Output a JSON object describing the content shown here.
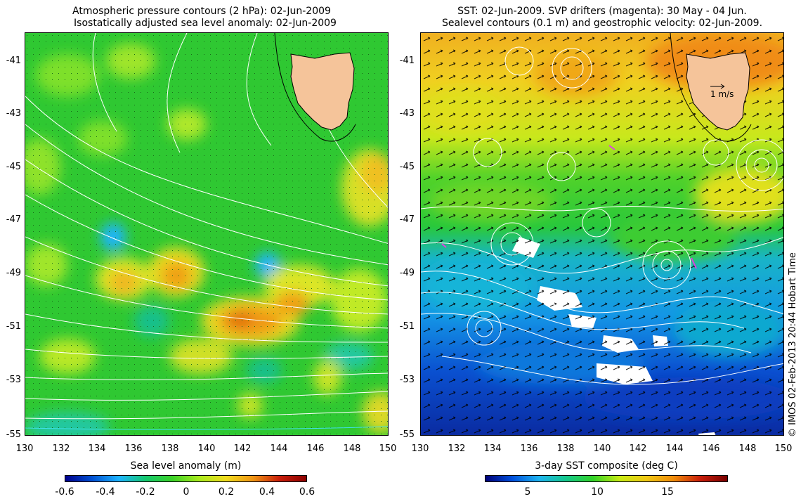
{
  "left": {
    "title_line1": "Atmospheric pressure contours (2 hPa): 02-Jun-2009",
    "title_line2": "Isostatically adjusted sea level anomaly: 02-Jun-2009",
    "colorbar_label": "Sea level anomaly (m)",
    "colorbar_ticks": [
      "-0.6",
      "-0.4",
      "-0.2",
      "0",
      "0.2",
      "0.4",
      "0.6"
    ]
  },
  "right": {
    "title_line1": "SST: 02-Jun-2009. SVP drifters (magenta): 30 May - 04 Jun.",
    "title_line2": "Sealevel contours (0.1 m) and geostrophic velocity: 02-Jun-2009.",
    "colorbar_label": "3-day SST composite (deg C)",
    "colorbar_ticks": [
      "5",
      "10",
      "15"
    ],
    "scale_label": "1 m/s"
  },
  "axes": {
    "y_ticks": [
      "-41",
      "-43",
      "-45",
      "-47",
      "-49",
      "-51",
      "-53",
      "-55"
    ],
    "x_ticks": [
      "130",
      "132",
      "134",
      "136",
      "138",
      "140",
      "142",
      "144",
      "146",
      "148",
      "150"
    ]
  },
  "credit": "© IMOS 02-Feb-2013 20:44 Hobart Time",
  "colors": {
    "land": "#f5c49a",
    "sla_ramp": [
      "#00008c",
      "#0050d2",
      "#1eb4ff",
      "#14c86e",
      "#3cd228",
      "#aaeb1e",
      "#f0dc1e",
      "#f09614",
      "#c81e0a",
      "#8c0000"
    ],
    "sst_ramp": [
      "#000078",
      "#0050dc",
      "#1eb4f0",
      "#14c88c",
      "#32d228",
      "#c8eb14",
      "#f0c814",
      "#f08c0a",
      "#c81e0a",
      "#780000"
    ]
  }
}
